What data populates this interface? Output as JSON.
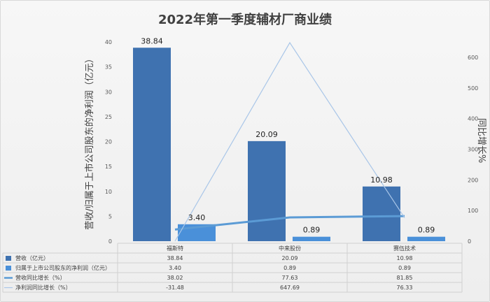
{
  "chart_data": {
    "type": "bar",
    "title": "2022年第一季度辅材厂商业绩",
    "ylabel_left": "营收/归属于上市公司股东的净利润（亿元）",
    "ylabel_right": "同比增长%",
    "categories": [
      "福斯特",
      "中来股份",
      "赛伍技术"
    ],
    "ylim_left": [
      0,
      40
    ],
    "yticks_left": [
      "0",
      "5",
      "10",
      "15",
      "20",
      "25",
      "30",
      "35",
      "40"
    ],
    "ylim_right": [
      0,
      650
    ],
    "yticks_right": [
      "0",
      "100",
      "200",
      "300",
      "400",
      "500",
      "600"
    ],
    "series": [
      {
        "name": "营收（亿元）",
        "kind": "bar",
        "axis": "left",
        "color": "#3f72b0",
        "values": [
          38.84,
          20.09,
          10.98
        ],
        "labels": [
          "38.84",
          "20.09",
          "10.98"
        ]
      },
      {
        "name": "归属于上市公司股东的净利润（亿元）",
        "kind": "bar",
        "axis": "left",
        "color": "#4a90d9",
        "values": [
          3.4,
          0.89,
          0.89
        ],
        "labels": [
          "3.40",
          "0.89",
          "0.89"
        ]
      },
      {
        "name": "营收同比增长（%）",
        "kind": "line",
        "axis": "right",
        "color": "#5b9bd5",
        "values": [
          38.02,
          77.63,
          81.85
        ],
        "labels": [
          "38.02",
          "77.63",
          "81.85"
        ]
      },
      {
        "name": "净利润同比增长（%）",
        "kind": "line",
        "axis": "right",
        "color": "#a9c6e8",
        "values": [
          -31.48,
          647.69,
          76.33
        ],
        "labels": [
          "-31.48",
          "647.69",
          "76.33"
        ]
      }
    ],
    "grid": false,
    "legend": "data-table"
  }
}
